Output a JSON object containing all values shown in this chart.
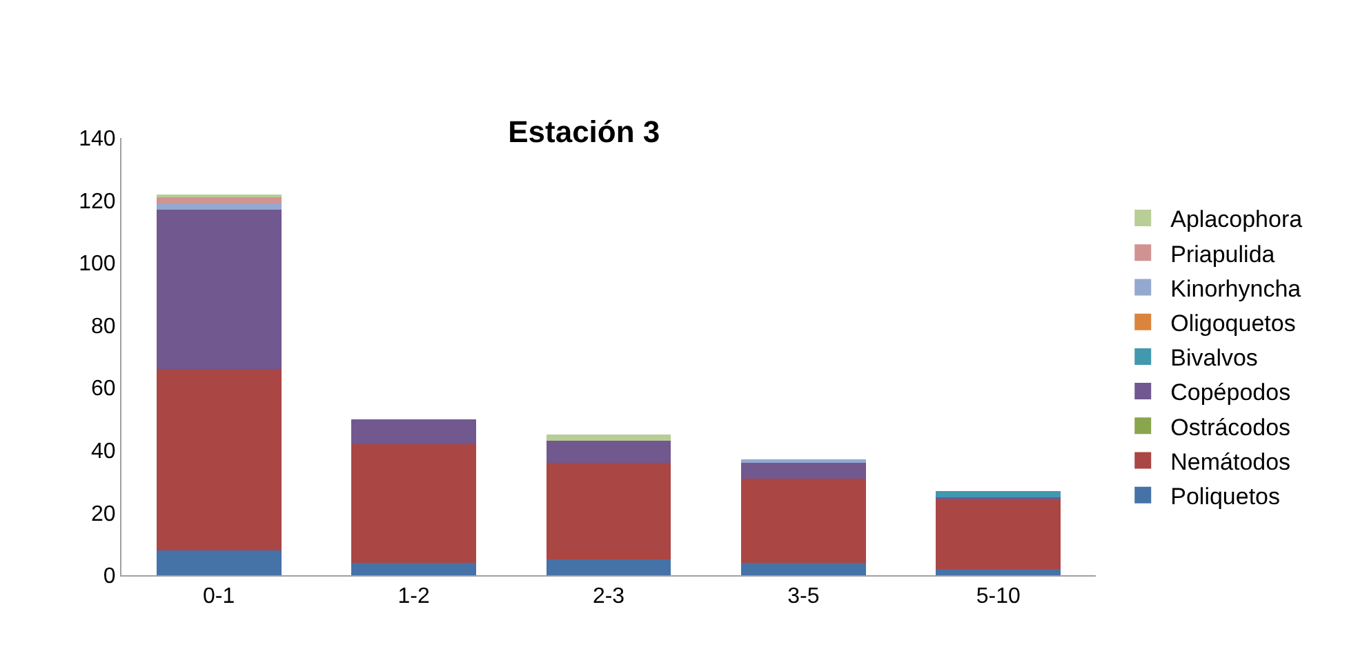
{
  "chart_data": {
    "type": "bar",
    "title": "Estación 3",
    "stacked": true,
    "legend": "right",
    "categories": [
      "0-1",
      "1-2",
      "2-3",
      "3-5",
      "5-10"
    ],
    "ylim": [
      0,
      140
    ],
    "yticks": [
      0,
      20,
      40,
      60,
      80,
      100,
      120,
      140
    ],
    "series": [
      {
        "name": "Poliquetos",
        "color": "#4572a7",
        "values": [
          8,
          4,
          5,
          4,
          2
        ]
      },
      {
        "name": "Nemátodos",
        "color": "#aa4643",
        "values": [
          58,
          38,
          31,
          27,
          22
        ]
      },
      {
        "name": "Ostrácodos",
        "color": "#89a54e",
        "values": [
          0,
          0,
          0,
          0,
          0
        ]
      },
      {
        "name": "Copépodos",
        "color": "#71588f",
        "values": [
          51,
          8,
          7,
          5,
          1
        ]
      },
      {
        "name": "Bivalvos",
        "color": "#4198af",
        "values": [
          0,
          0,
          0,
          0,
          2
        ]
      },
      {
        "name": "Oligoquetos",
        "color": "#db843d",
        "values": [
          0,
          0,
          0,
          0,
          0
        ]
      },
      {
        "name": "Kinorhyncha",
        "color": "#93a9cf",
        "values": [
          2,
          0,
          0,
          1,
          0
        ]
      },
      {
        "name": "Priapulida",
        "color": "#d19392",
        "values": [
          2,
          0,
          0,
          0,
          0
        ]
      },
      {
        "name": "Aplacophora",
        "color": "#b9cd96",
        "values": [
          1,
          0,
          2,
          0,
          0
        ]
      }
    ]
  }
}
